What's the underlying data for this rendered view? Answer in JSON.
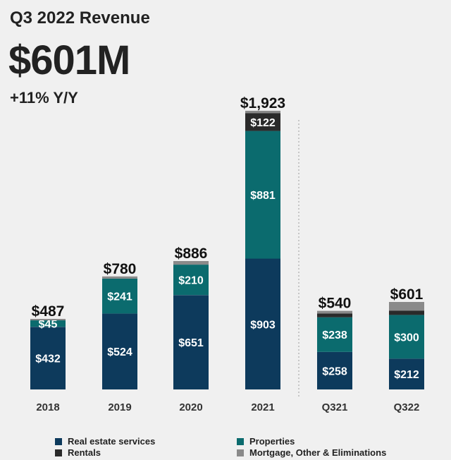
{
  "header": {
    "title": "Q3 2022 Revenue",
    "headline_value": "$601M",
    "growth": "+11% Y/Y"
  },
  "colors": {
    "real_estate_services": "#0d3a5c",
    "properties": "#0b6b6e",
    "rentals": "#2a2a2a",
    "mortgage_other": "#8a8a8a",
    "background": "#f0f0f0",
    "divider": "#aaaaaa"
  },
  "chart_data": {
    "type": "bar",
    "stacked": true,
    "title": "Q3 2022 Revenue",
    "xlabel": "",
    "ylabel": "",
    "categories": [
      "2018",
      "2019",
      "2020",
      "2021",
      "Q321",
      "Q322"
    ],
    "totals": [
      487,
      780,
      886,
      1923,
      540,
      601
    ],
    "total_labels": [
      "$487",
      "$780",
      "$886",
      "$1,923",
      "$540",
      "$601"
    ],
    "series": [
      {
        "name": "Real estate services",
        "color_key": "real_estate_services",
        "values": [
          432,
          524,
          651,
          903,
          258,
          212
        ],
        "labels": [
          "$432",
          "$524",
          "$651",
          "$903",
          "$258",
          "$212"
        ]
      },
      {
        "name": "Properties",
        "color_key": "properties",
        "values": [
          45,
          241,
          210,
          881,
          238,
          300
        ],
        "labels": [
          "$45",
          "$241",
          "$210",
          "$881",
          "$238",
          "$300"
        ]
      },
      {
        "name": "Rentals",
        "color_key": "rentals",
        "values": [
          0,
          0,
          0,
          122,
          25,
          30
        ],
        "labels": [
          "",
          "",
          "",
          "$122",
          "",
          ""
        ]
      },
      {
        "name": "Mortgage, Other & Eliminations",
        "color_key": "mortgage_other",
        "values": [
          10,
          15,
          25,
          17,
          19,
          59
        ],
        "labels": [
          "",
          "",
          "",
          "",
          "",
          ""
        ]
      }
    ],
    "annual_scale_max": 1923,
    "quarterly_scale_max": 601,
    "divider_after_category": "2021",
    "legend_position": "bottom",
    "grid": false
  },
  "legend": [
    {
      "label": "Real estate services",
      "color_key": "real_estate_services"
    },
    {
      "label": "Properties",
      "color_key": "properties"
    },
    {
      "label": "Rentals",
      "color_key": "rentals"
    },
    {
      "label": "Mortgage, Other & Eliminations",
      "color_key": "mortgage_other"
    }
  ]
}
